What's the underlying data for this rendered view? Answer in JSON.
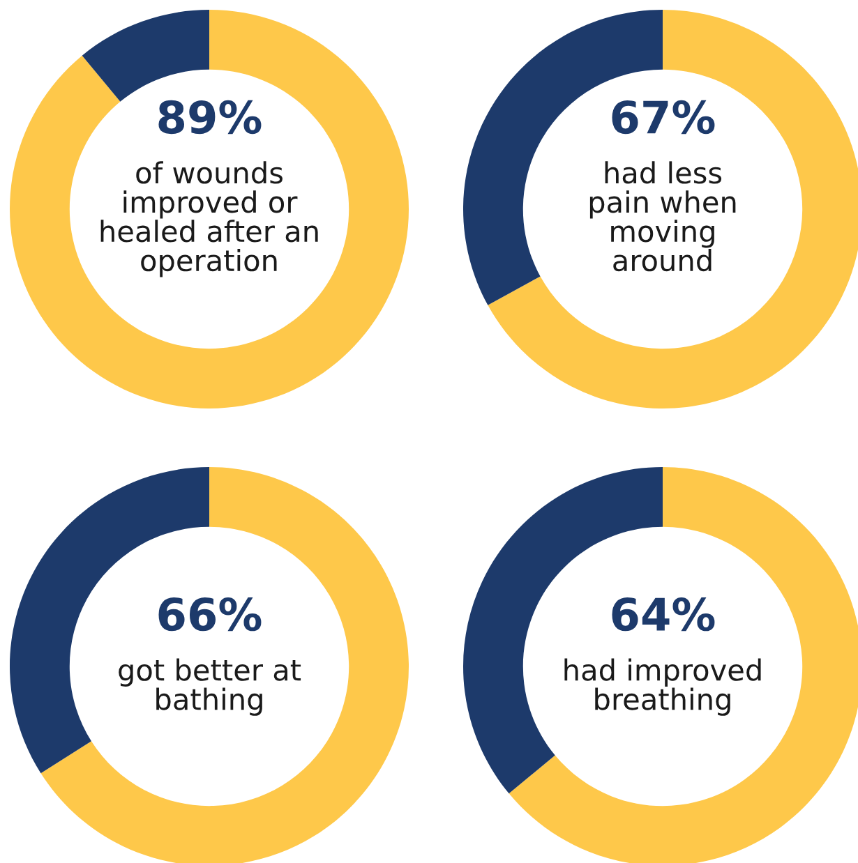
{
  "chart_data": [
    {
      "type": "donut",
      "categories": [
        null,
        null
      ],
      "values": [
        89,
        11
      ],
      "colors": [
        "#fec84a",
        "#1d3a6b"
      ],
      "annotations": [
        "89%",
        "of wounds\nimproved or\nhealed after an\noperation"
      ]
    },
    {
      "type": "donut",
      "categories": [
        null,
        null
      ],
      "values": [
        67,
        33
      ],
      "colors": [
        "#fec84a",
        "#1d3a6b"
      ],
      "annotations": [
        "67%",
        "had less\npain when\nmoving\naround"
      ]
    },
    {
      "type": "donut",
      "categories": [
        null,
        null
      ],
      "values": [
        66,
        34
      ],
      "colors": [
        "#fec84a",
        "#1d3a6b"
      ],
      "annotations": [
        "66%",
        "got better at\nbathing"
      ]
    },
    {
      "type": "donut",
      "categories": [
        null,
        null
      ],
      "values": [
        64,
        36
      ],
      "colors": [
        "#fec84a",
        "#1d3a6b"
      ],
      "annotations": [
        "64%",
        "had improved\nbreathing"
      ]
    }
  ]
}
